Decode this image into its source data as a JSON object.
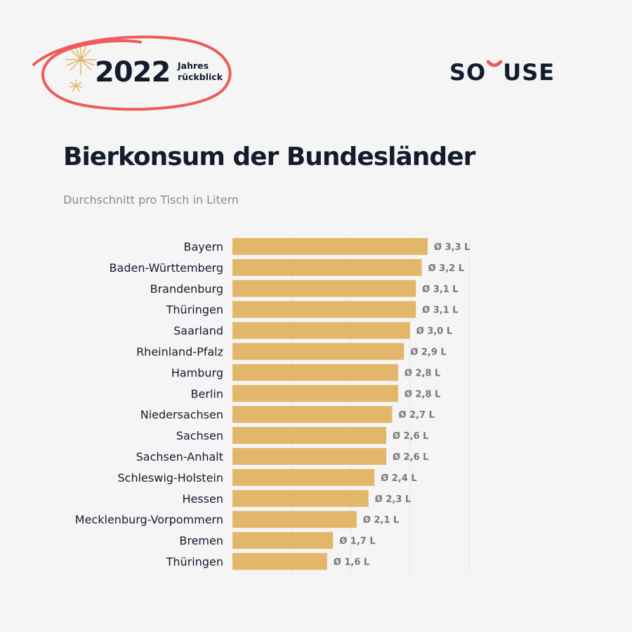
{
  "badge": {
    "year": "2022",
    "line1": "Jahres",
    "line2": "rückblick"
  },
  "logo": {
    "left": "SO",
    "right": "USE",
    "accent": "#f05a5a"
  },
  "colors": {
    "bar": "#e3b76a",
    "circle": "#f05a5a",
    "text": "#141b2d",
    "grid": "#e6e6e6"
  },
  "chart_data": {
    "type": "bar",
    "orientation": "horizontal",
    "title": "Bierkonsum der Bundesländer",
    "subtitle": "Durchschnitt pro Tisch in Litern",
    "categories": [
      "Bayern",
      "Baden-Württemberg",
      "Brandenburg",
      "Thüringen",
      "Saarland",
      "Rheinland-Pfalz",
      "Hamburg",
      "Berlin",
      "Niedersachsen",
      "Sachsen",
      "Sachsen-Anhalt",
      "Schleswig-Holstein",
      "Hessen",
      "Mecklenburg-Vorpommern",
      "Bremen",
      "Thüringen"
    ],
    "values": [
      3.3,
      3.2,
      3.1,
      3.1,
      3.0,
      2.9,
      2.8,
      2.8,
      2.7,
      2.6,
      2.6,
      2.4,
      2.3,
      2.1,
      1.7,
      1.6
    ],
    "data_labels": [
      "Ø 3,3 L",
      "Ø 3,2 L",
      "Ø 3,1 L",
      "Ø 3,1 L",
      "Ø 3,0 L",
      "Ø 2,9 L",
      "Ø 2,8 L",
      "Ø 2,8 L",
      "Ø 2,7 L",
      "Ø 2,6 L",
      "Ø 2,6 L",
      "Ø 2,4 L",
      "Ø 2,3 L",
      "Ø 2,1 L",
      "Ø 1,7 L",
      "Ø 1,6 L"
    ],
    "xlim": [
      0,
      4
    ],
    "grid": true,
    "legend": "none"
  }
}
